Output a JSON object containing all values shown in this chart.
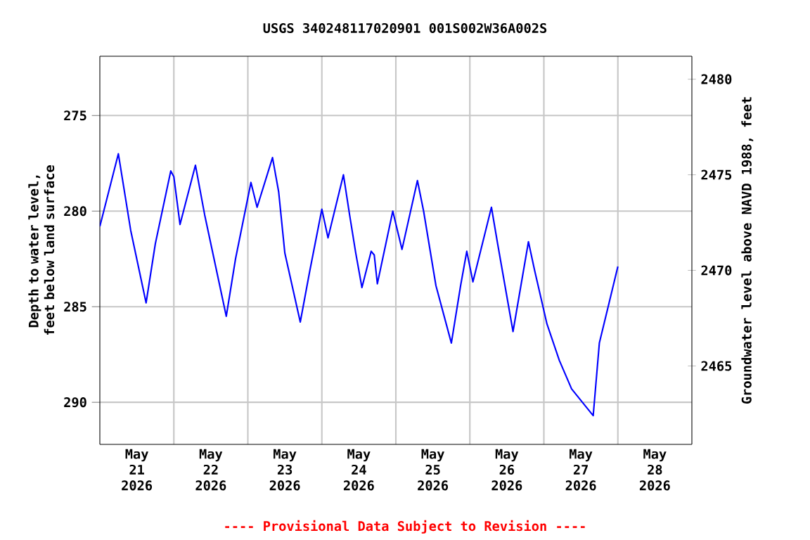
{
  "chart_data": {
    "type": "line",
    "title": "USGS 340248117020901 001S002W36A002S",
    "ylabel": "Depth to water level, feet below land surface",
    "y2label": "Groundwater level above NAVD 1988, feet",
    "annotations": [
      "---- Provisional Data Subject to Revision ----"
    ],
    "series": [
      {
        "color": "#0000ff",
        "x": [
          "2026-05-21T00:00",
          "2026-05-21T06:00",
          "2026-05-21T10:00",
          "2026-05-21T15:00",
          "2026-05-21T18:00",
          "2026-05-21T23:00",
          "2026-05-22T00:00",
          "2026-05-22T02:00",
          "2026-05-22T07:00",
          "2026-05-22T10:00",
          "2026-05-22T17:00",
          "2026-05-22T20:00",
          "2026-05-23T01:00",
          "2026-05-23T03:00",
          "2026-05-23T08:00",
          "2026-05-23T10:00",
          "2026-05-23T12:00",
          "2026-05-23T17:00",
          "2026-05-23T20:00",
          "2026-05-24T00:00",
          "2026-05-24T02:00",
          "2026-05-24T07:00",
          "2026-05-24T09:00",
          "2026-05-24T11:00",
          "2026-05-24T13:00",
          "2026-05-24T16:00",
          "2026-05-24T17:00",
          "2026-05-24T18:00",
          "2026-05-24T23:00",
          "2026-05-25T02:00",
          "2026-05-25T07:00",
          "2026-05-25T09:00",
          "2026-05-25T13:00",
          "2026-05-25T18:00",
          "2026-05-25T21:00",
          "2026-05-25T23:00",
          "2026-05-26T01:00",
          "2026-05-26T07:00",
          "2026-05-26T09:00",
          "2026-05-26T14:00",
          "2026-05-26T19:00",
          "2026-05-26T21:00",
          "2026-05-27T01:00",
          "2026-05-27T05:00",
          "2026-05-27T09:00",
          "2026-05-27T13:00",
          "2026-05-27T16:00",
          "2026-05-27T18:00",
          "2026-05-27T21:00",
          "2026-05-28T00:00"
        ],
        "values": [
          280.8,
          277.0,
          281.0,
          284.8,
          281.7,
          277.9,
          278.2,
          280.7,
          277.6,
          280.2,
          285.5,
          282.5,
          278.5,
          279.8,
          277.2,
          279.0,
          282.2,
          285.8,
          283.2,
          279.9,
          281.4,
          278.1,
          280.2,
          282.2,
          284.0,
          282.1,
          282.3,
          283.8,
          280.0,
          282.0,
          278.4,
          280.0,
          283.9,
          286.9,
          283.9,
          282.1,
          283.7,
          279.8,
          281.7,
          286.3,
          281.6,
          283.1,
          285.9,
          287.8,
          289.3,
          290.1,
          290.7,
          286.9,
          284.9,
          282.9
        ]
      }
    ],
    "xlim": [
      "2026-05-21",
      "2026-05-29"
    ],
    "xticks": [
      {
        "value": "2026-05-22",
        "label": null
      },
      {
        "value": "2026-05-23",
        "label": null
      },
      {
        "value": "2026-05-24",
        "label": null
      },
      {
        "value": "2026-05-25",
        "label": null
      },
      {
        "value": "2026-05-26",
        "label": null
      },
      {
        "value": "2026-05-27",
        "label": null
      },
      {
        "value": "2026-05-28",
        "label": null
      },
      {
        "value": "2026-05-21T12:00",
        "label": "May 21 2026"
      },
      {
        "value": "2026-05-22T12:00",
        "label": "May 22 2026"
      },
      {
        "value": "2026-05-23T12:00",
        "label": "May 23 2026"
      },
      {
        "value": "2026-05-24T12:00",
        "label": "May 24 2026"
      },
      {
        "value": "2026-05-25T12:00",
        "label": "May 25 2026"
      },
      {
        "value": "2026-05-26T12:00",
        "label": "May 26 2026"
      },
      {
        "value": "2026-05-27T12:00",
        "label": "May 27 2026"
      },
      {
        "value": "2026-05-28T12:00",
        "label": "May 28 2026"
      }
    ],
    "ylim": [
      292.2,
      271.9
    ],
    "yticks": [
      275,
      280,
      285,
      290
    ],
    "y2lim": [
      2460.9,
      2481.2
    ],
    "y2ticks": [
      2465,
      2470,
      2475,
      2480
    ],
    "grid": true
  }
}
